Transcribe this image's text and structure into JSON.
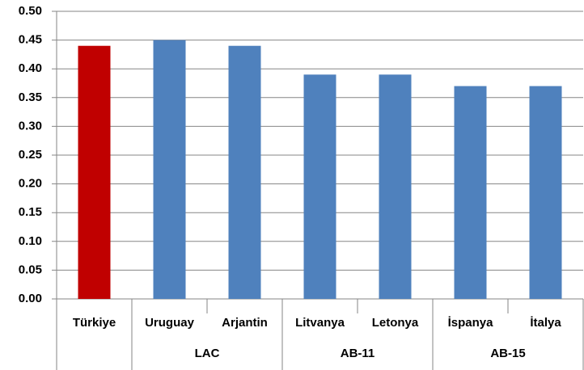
{
  "chart_data": {
    "type": "bar",
    "categories": [
      "Türkiye",
      "Uruguay",
      "Arjantin",
      "Litvanya",
      "Letonya",
      "İspanya",
      "İtalya"
    ],
    "groups": [
      null,
      "LAC",
      "LAC",
      "AB-11",
      "AB-11",
      "AB-15",
      "AB-15"
    ],
    "values": [
      0.44,
      0.45,
      0.44,
      0.39,
      0.39,
      0.37,
      0.37
    ],
    "colors": [
      "#c00000",
      "#4f81bd",
      "#4f81bd",
      "#4f81bd",
      "#4f81bd",
      "#4f81bd",
      "#4f81bd"
    ],
    "ylim": [
      0,
      0.5
    ],
    "yticks": [
      {
        "value": 0,
        "label": "0.00"
      },
      {
        "value": 0.05,
        "label": "0.05"
      },
      {
        "value": 0.1,
        "label": "0.10"
      },
      {
        "value": 0.15,
        "label": "0.15"
      },
      {
        "value": 0.2,
        "label": "0.20"
      },
      {
        "value": 0.25,
        "label": "0.25"
      },
      {
        "value": 0.3,
        "label": "0.30"
      },
      {
        "value": 0.35,
        "label": "0.35"
      },
      {
        "value": 0.4,
        "label": "0.40"
      },
      {
        "value": 0.45,
        "label": "0.45"
      },
      {
        "value": 0.5,
        "label": "0.50"
      }
    ],
    "grid": true
  }
}
